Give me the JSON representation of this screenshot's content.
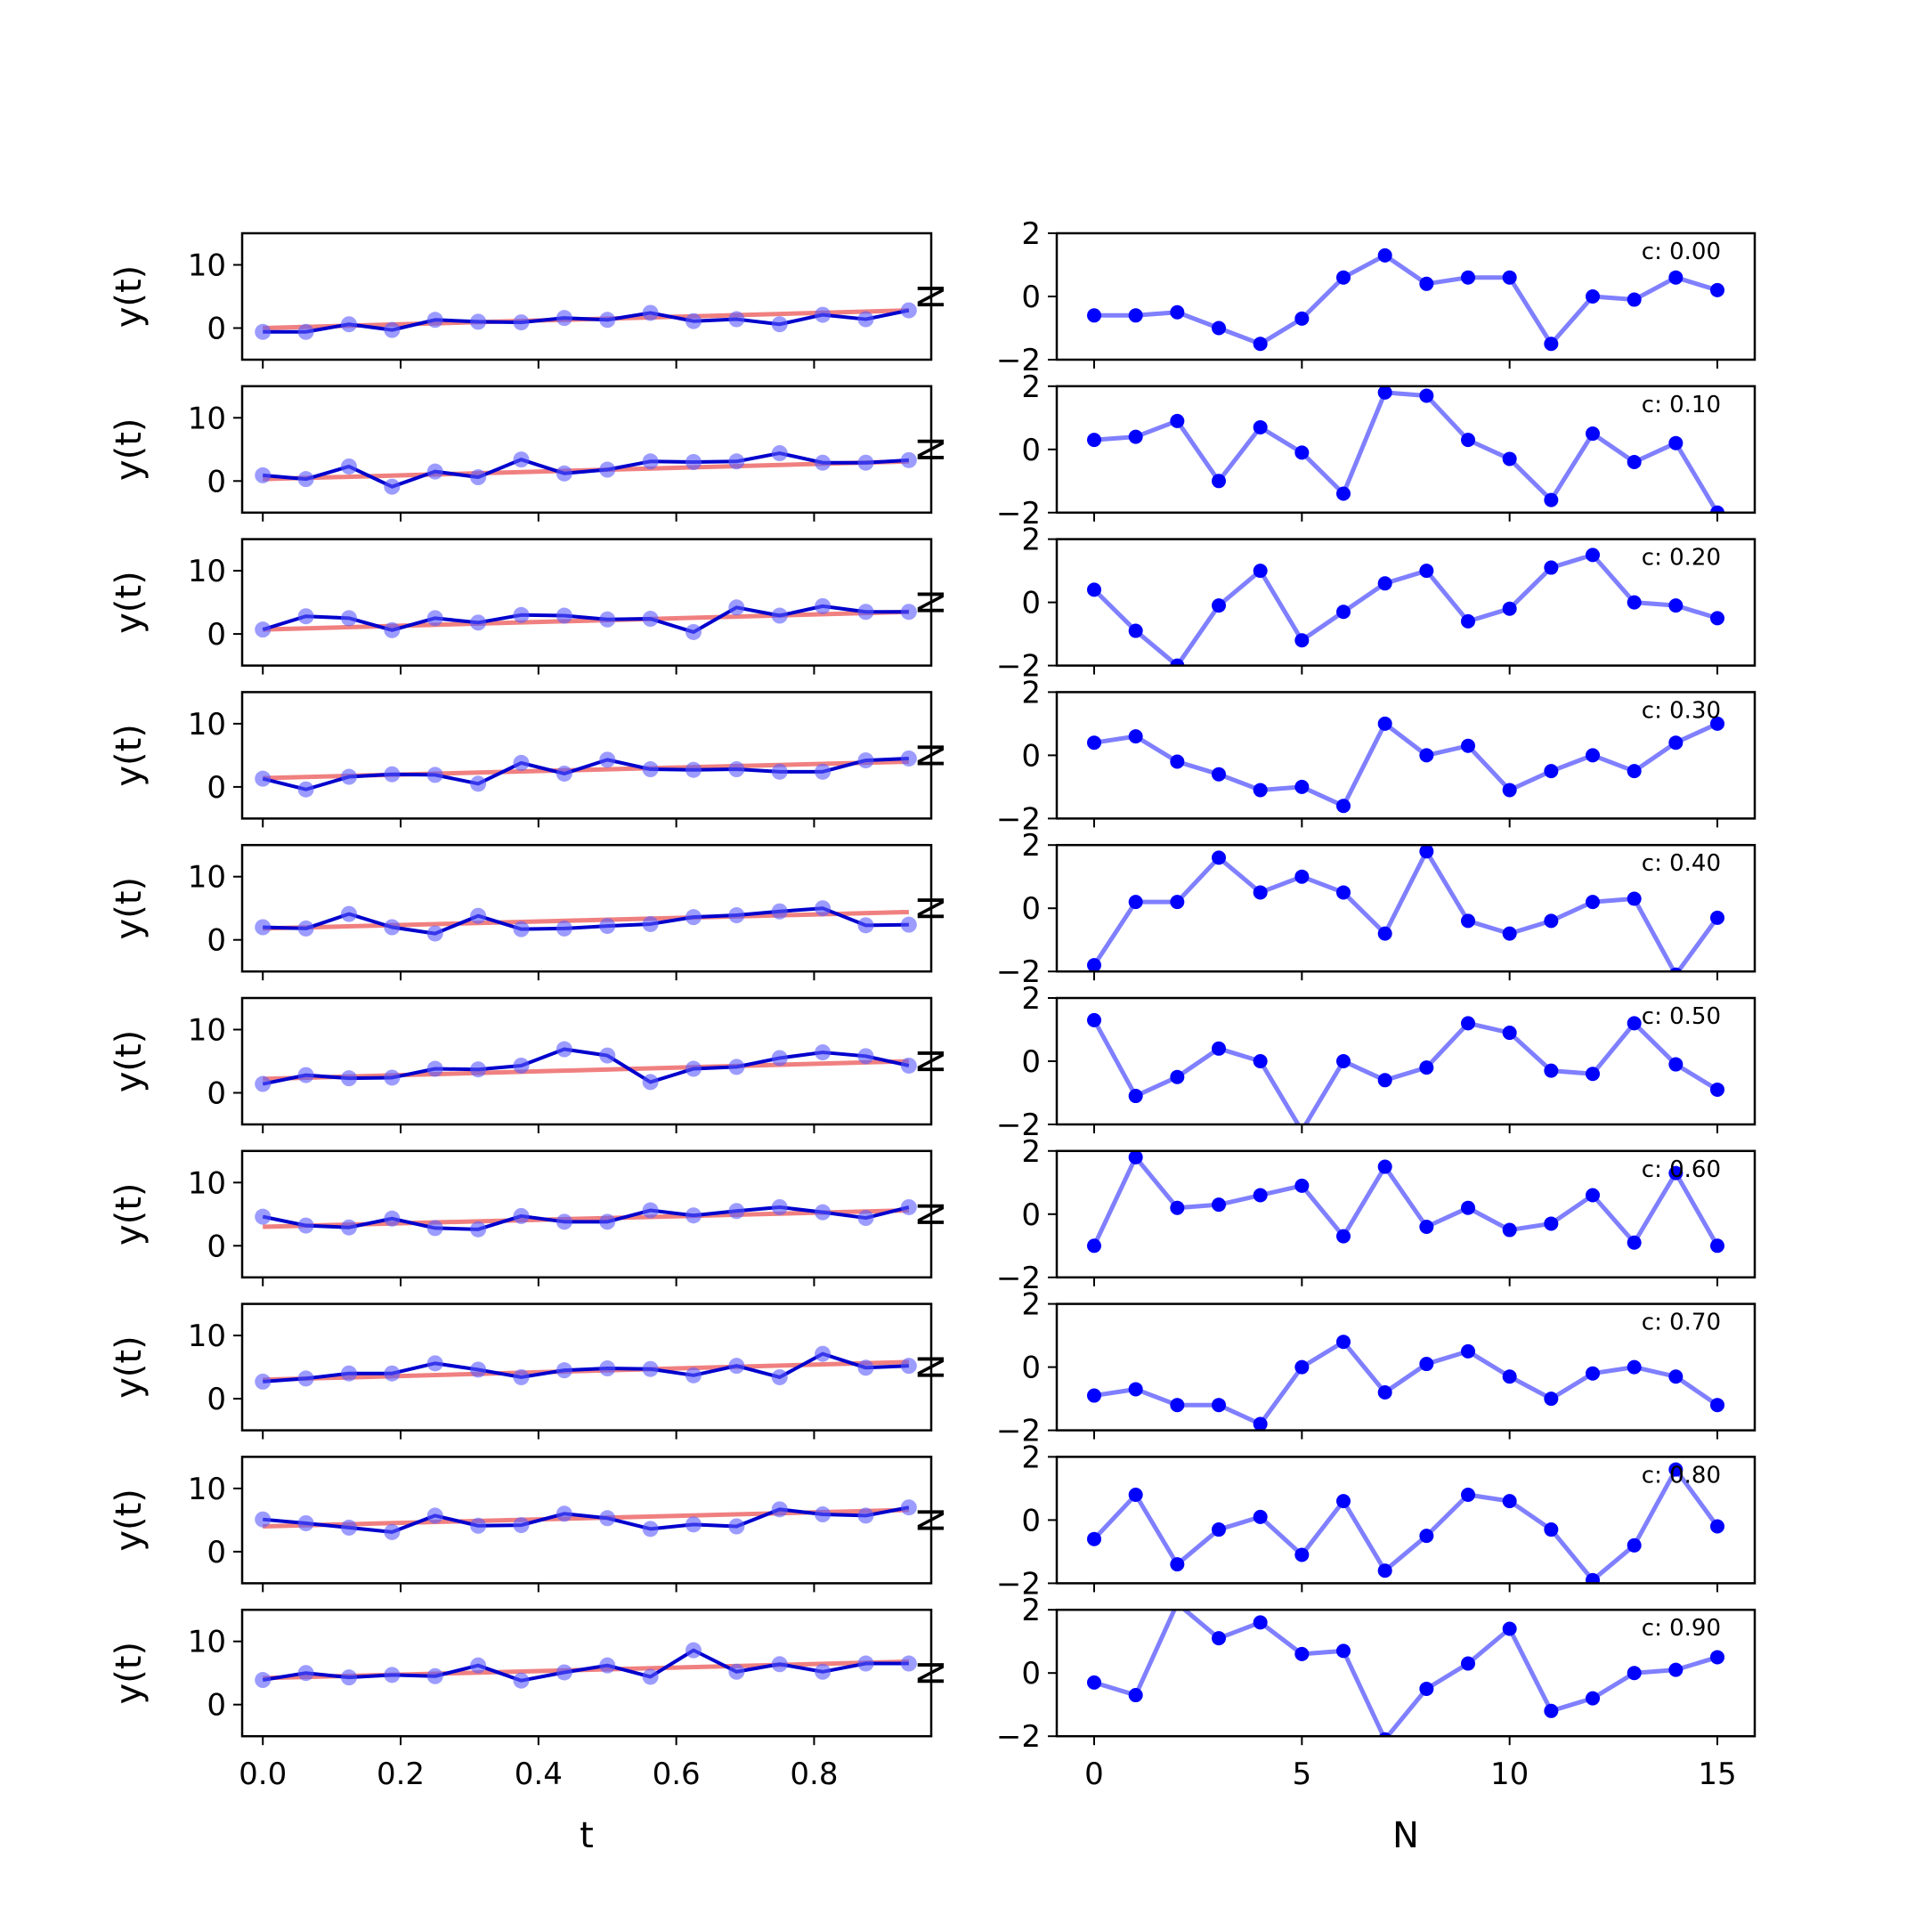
{
  "chart_data": {
    "type": "line",
    "left": {
      "xlabel": "t",
      "ylabel": "y(t)",
      "xlim": [
        -0.03,
        0.97
      ],
      "ylim": [
        -5,
        15
      ],
      "xticks": [
        0.0,
        0.2,
        0.4,
        0.6,
        0.8
      ],
      "xtick_labels": [
        "0.0",
        "0.2",
        "0.4",
        "0.6",
        "0.8"
      ],
      "yticks": [
        0,
        10
      ],
      "ytick_labels": [
        "0",
        "10"
      ],
      "x": [
        0.0,
        0.0625,
        0.125,
        0.1875,
        0.25,
        0.3125,
        0.375,
        0.4375,
        0.5,
        0.5625,
        0.625,
        0.6875,
        0.75,
        0.8125,
        0.875,
        0.9375
      ]
    },
    "right": {
      "xlabel": "N",
      "xlim": [
        -0.9,
        15.9
      ],
      "ylim": [
        -2,
        2
      ],
      "xticks": [
        0,
        5,
        10,
        15
      ],
      "xtick_labels": [
        "0",
        "5",
        "10",
        "15"
      ],
      "yticks": [
        -2,
        0,
        2
      ],
      "ytick_labels": [
        "−2",
        "0",
        "2"
      ],
      "cut_label": "N",
      "x": [
        0,
        1,
        2,
        3,
        4,
        5,
        6,
        7,
        8,
        9,
        10,
        11,
        12,
        13,
        14,
        15
      ]
    },
    "rows": [
      {
        "label": "c: 0.00",
        "trend": [
          0.0,
          2.8
        ],
        "y": [
          -0.6,
          -0.6,
          0.6,
          -0.3,
          1.3,
          1.0,
          0.9,
          1.6,
          1.3,
          2.4,
          1.1,
          1.4,
          0.6,
          2.1,
          1.4,
          2.8
        ],
        "noise": [
          -0.6,
          -0.6,
          -0.5,
          -1.0,
          -1.5,
          -0.7,
          0.6,
          1.3,
          0.4,
          0.6,
          0.6,
          -1.5,
          0.0,
          -0.1,
          0.6,
          0.2
        ]
      },
      {
        "label": "c: 0.10",
        "trend": [
          0.3,
          3.1
        ],
        "y": [
          0.9,
          0.3,
          2.3,
          -0.9,
          1.5,
          0.6,
          3.4,
          1.2,
          1.8,
          3.1,
          3.0,
          3.1,
          4.4,
          2.9,
          2.9,
          3.3
        ],
        "noise": [
          0.3,
          0.4,
          0.9,
          -1.0,
          0.7,
          -0.1,
          -1.4,
          1.8,
          1.7,
          0.3,
          -0.3,
          -1.6,
          0.5,
          -0.4,
          0.2,
          -2.0
        ]
      },
      {
        "label": "c: 0.20",
        "trend": [
          0.7,
          3.5
        ],
        "y": [
          0.7,
          2.8,
          2.5,
          0.6,
          2.5,
          1.8,
          3.0,
          2.9,
          2.3,
          2.4,
          0.3,
          4.2,
          2.9,
          4.4,
          3.5,
          3.5
        ],
        "noise": [
          0.4,
          -0.9,
          -2.0,
          -0.1,
          1.0,
          -1.2,
          -0.3,
          0.6,
          1.0,
          -0.6,
          -0.2,
          1.1,
          1.5,
          0.0,
          -0.1,
          -0.5
        ]
      },
      {
        "label": "c: 0.30",
        "trend": [
          1.4,
          4.0
        ],
        "y": [
          1.3,
          -0.4,
          1.6,
          2.0,
          1.9,
          0.5,
          3.8,
          2.1,
          4.3,
          2.8,
          2.7,
          2.8,
          2.4,
          2.4,
          4.2,
          4.5
        ],
        "noise": [
          0.4,
          0.6,
          -0.2,
          -0.6,
          -1.1,
          -1.0,
          -1.6,
          1.0,
          0.0,
          0.3,
          -1.1,
          -0.5,
          0.0,
          -0.5,
          0.4,
          1.0
        ]
      },
      {
        "label": "c: 0.40",
        "trend": [
          1.8,
          4.4
        ],
        "y": [
          2.0,
          1.8,
          4.1,
          2.0,
          1.0,
          3.8,
          1.7,
          1.8,
          2.2,
          2.5,
          3.6,
          3.9,
          4.5,
          5.0,
          2.3,
          2.4
        ],
        "noise": [
          -1.8,
          0.2,
          0.2,
          1.6,
          0.5,
          1.0,
          0.5,
          -0.8,
          1.8,
          -0.4,
          -0.8,
          -0.4,
          0.2,
          0.3,
          -2.1,
          -0.3
        ]
      },
      {
        "label": "c: 0.50",
        "trend": [
          2.2,
          5.0
        ],
        "y": [
          1.4,
          2.8,
          2.3,
          2.4,
          3.8,
          3.7,
          4.3,
          6.9,
          5.9,
          1.7,
          3.8,
          4.1,
          5.5,
          6.4,
          5.8,
          4.3
        ],
        "noise": [
          1.3,
          -1.1,
          -0.5,
          0.4,
          0.0,
          -2.2,
          0.0,
          -0.6,
          -0.2,
          1.2,
          0.9,
          -0.3,
          -0.4,
          1.2,
          -0.1,
          -0.9
        ]
      },
      {
        "label": "c: 0.60",
        "trend": [
          3.0,
          5.6
        ],
        "y": [
          4.6,
          3.2,
          2.9,
          4.3,
          2.8,
          2.6,
          4.7,
          3.8,
          3.8,
          5.6,
          4.8,
          5.5,
          6.1,
          5.3,
          4.4,
          6.1
        ],
        "noise": [
          -1.0,
          1.8,
          0.2,
          0.3,
          0.6,
          0.9,
          -0.7,
          1.5,
          -0.4,
          0.2,
          -0.5,
          -0.3,
          0.6,
          -0.9,
          1.3,
          -1.0
        ]
      },
      {
        "label": "c: 0.70",
        "trend": [
          3.0,
          5.8
        ],
        "y": [
          2.7,
          3.2,
          4.0,
          4.0,
          5.6,
          4.6,
          3.4,
          4.5,
          4.8,
          4.7,
          3.7,
          5.2,
          3.4,
          7.1,
          4.9,
          5.2
        ],
        "noise": [
          -0.9,
          -0.7,
          -1.2,
          -1.2,
          -1.8,
          0.0,
          0.8,
          -0.8,
          0.1,
          0.5,
          -0.3,
          -1.0,
          -0.2,
          0.0,
          -0.3,
          -1.2
        ]
      },
      {
        "label": "c: 0.80",
        "trend": [
          4.0,
          6.6
        ],
        "y": [
          5.1,
          4.5,
          3.8,
          3.1,
          5.7,
          4.1,
          4.2,
          6.0,
          5.3,
          3.6,
          4.3,
          4.0,
          6.7,
          5.9,
          5.7,
          7.0
        ],
        "noise": [
          -0.6,
          0.8,
          -1.4,
          -0.3,
          0.1,
          -1.1,
          0.6,
          -1.6,
          -0.5,
          0.8,
          0.6,
          -0.3,
          -1.9,
          -0.8,
          1.6,
          -0.2
        ]
      },
      {
        "label": "c: 0.90",
        "trend": [
          4.2,
          6.8
        ],
        "y": [
          3.9,
          5.0,
          4.3,
          4.7,
          4.5,
          6.2,
          3.8,
          5.1,
          6.2,
          4.4,
          8.6,
          5.2,
          6.4,
          5.2,
          6.5,
          6.5
        ],
        "noise": [
          -0.3,
          -0.7,
          2.2,
          1.1,
          1.6,
          0.6,
          0.7,
          -2.1,
          -0.5,
          0.3,
          1.4,
          -1.2,
          -0.8,
          0.0,
          0.1,
          0.5
        ]
      }
    ]
  }
}
